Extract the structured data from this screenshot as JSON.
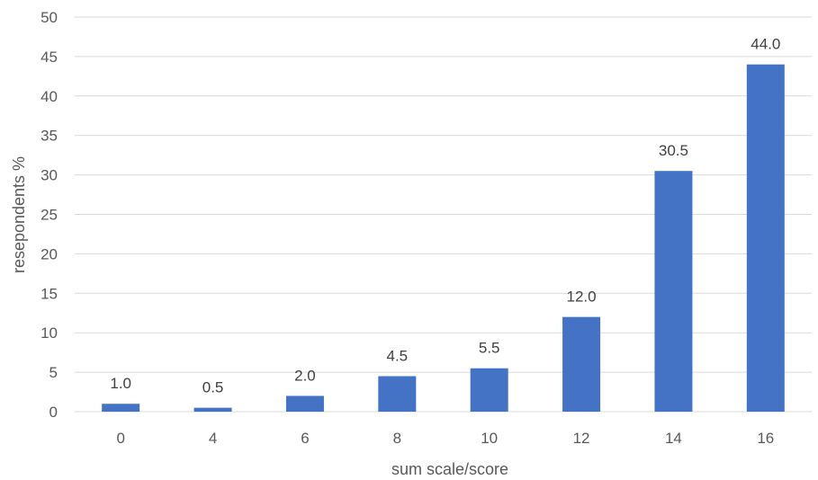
{
  "chart_data": {
    "type": "bar",
    "categories": [
      "0",
      "4",
      "6",
      "8",
      "10",
      "12",
      "14",
      "16"
    ],
    "values": [
      1.0,
      0.5,
      2.0,
      4.5,
      5.5,
      12.0,
      30.5,
      44.0
    ],
    "data_labels": [
      "1.0",
      "0.5",
      "2.0",
      "4.5",
      "5.5",
      "12.0",
      "30.5",
      "44.0"
    ],
    "xlabel": "sum scale/score",
    "ylabel": "resepondents %",
    "ylim": [
      0,
      50
    ],
    "yticks": [
      "0",
      "5",
      "10",
      "15",
      "20",
      "25",
      "30",
      "35",
      "40",
      "45",
      "50"
    ],
    "grid": true,
    "bar_color": "#4472C4"
  }
}
